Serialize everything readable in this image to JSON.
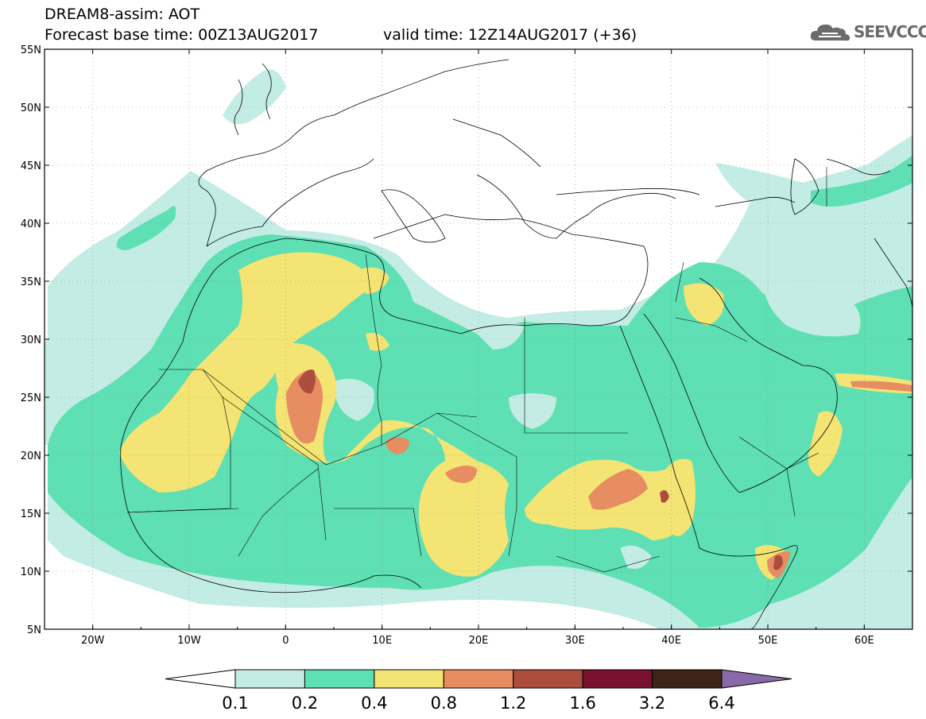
{
  "header": {
    "line1": "DREAM8-assim: AOT",
    "line2": "Forecast base time: 00Z13AUG2017",
    "line3": "valid time: 12Z14AUG2017 (+36)"
  },
  "logo": {
    "text": "SEEVCCC",
    "icon": "cloud-icon"
  },
  "map": {
    "lat_labels": [
      "55N",
      "50N",
      "45N",
      "40N",
      "35N",
      "30N",
      "25N",
      "20N",
      "15N",
      "10N",
      "5N"
    ],
    "lon_labels": [
      "20W",
      "10W",
      "0",
      "10E",
      "20E",
      "30E",
      "40E",
      "50E",
      "60E"
    ],
    "extent": {
      "lon": [
        -25,
        65
      ],
      "lat": [
        5,
        55
      ]
    },
    "grid": true
  },
  "colorbar": {
    "labels": [
      "0.1",
      "0.2",
      "0.4",
      "0.8",
      "1.2",
      "1.6",
      "3.2",
      "6.4"
    ],
    "colors": [
      "#ffffff",
      "#c3ece4",
      "#5edfb4",
      "#f4e473",
      "#e68d62",
      "#ad4d3d",
      "#7a1030",
      "#3d2418",
      "#8a69a8"
    ]
  }
}
